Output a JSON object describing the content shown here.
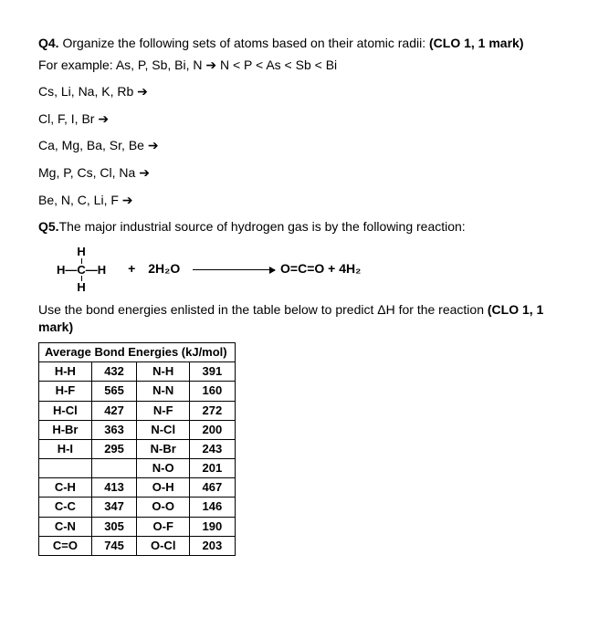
{
  "q4": {
    "label": "Q4.",
    "prompt": " Organize the following sets of atoms based on their atomic radii: ",
    "clo": "(CLO 1, 1 mark)",
    "example": "For example: As, P, Sb, Bi, N ➔ N < P < As < Sb < Bi",
    "sets": [
      "Cs, Li, Na, K, Rb ➔",
      "Cl, F, I, Br ➔",
      "Ca, Mg, Ba, Sr, Be ➔",
      "Mg, P, Cs, Cl, Na ➔",
      "Be, N, C, Li, F ➔"
    ]
  },
  "q5": {
    "label": "Q5.",
    "prompt": "The major industrial source of hydrogen gas is by the following reaction:",
    "reaction": {
      "plus": "+",
      "water": "2H₂O",
      "products": "O=C=O + 4H₂"
    },
    "use_text": "Use the bond energies enlisted in the table below to predict ΔH for the reaction ",
    "clo": "(CLO 1, 1 mark)"
  },
  "table": {
    "title": "Average Bond Energies (kJ/mol)",
    "rows": [
      [
        "H-H",
        "432",
        "N-H",
        "391"
      ],
      [
        "H-F",
        "565",
        "N-N",
        "160"
      ],
      [
        "H-Cl",
        "427",
        "N-F",
        "272"
      ],
      [
        "H-Br",
        "363",
        "N-Cl",
        "200"
      ],
      [
        "H-I",
        "295",
        "N-Br",
        "243"
      ],
      [
        "",
        "",
        "N-O",
        "201"
      ],
      [
        "C-H",
        "413",
        "O-H",
        "467"
      ],
      [
        "C-C",
        "347",
        "O-O",
        "146"
      ],
      [
        "C-N",
        "305",
        "O-F",
        "190"
      ],
      [
        "C=O",
        "745",
        "O-Cl",
        "203"
      ]
    ]
  }
}
